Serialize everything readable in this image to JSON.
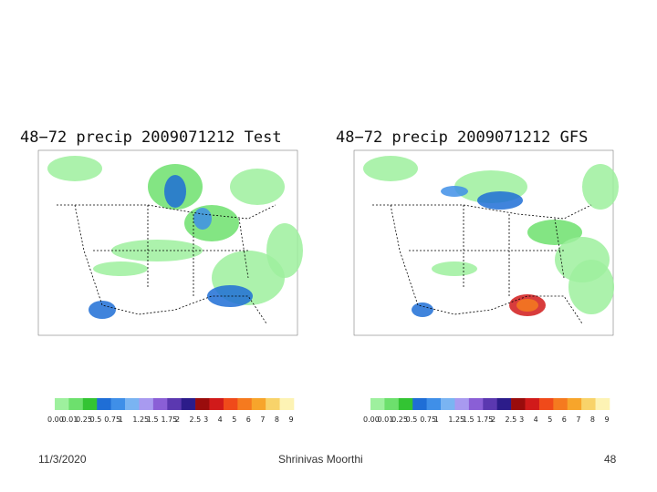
{
  "panels": [
    {
      "title": "48−72 precip 2009071212 Test"
    },
    {
      "title": "48−72 precip 2009071212 GFS"
    }
  ],
  "colorbar": {
    "labels": [
      "0.00",
      "0.01",
      "0.25",
      "0.5",
      "0.75",
      "1",
      "1.25",
      "1.5",
      "1.75",
      "2",
      "2.5",
      "3",
      "4",
      "5",
      "6",
      "7",
      "8",
      "9"
    ],
    "colors": [
      "#9ef09e",
      "#6de06d",
      "#33c433",
      "#1f6ed6",
      "#3f8fe8",
      "#7ab4f2",
      "#a89af0",
      "#8a5fd6",
      "#5b38b0",
      "#2c1c8a",
      "#9a0c0c",
      "#d11a1a",
      "#f04a1a",
      "#f57a1f",
      "#f7a52b",
      "#f8d36a",
      "#fdf3b4"
    ]
  },
  "footer": {
    "date": "11/3/2020",
    "author": "Shrinivas Moorthi",
    "page": "48"
  }
}
